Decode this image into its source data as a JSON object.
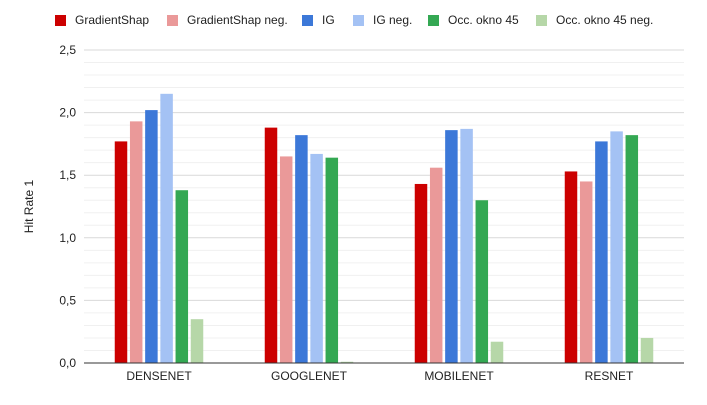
{
  "chart_data": {
    "type": "bar",
    "title": "",
    "xlabel": "",
    "ylabel": "Hit Rate 1",
    "categories": [
      "DENSENET",
      "GOOGLENET",
      "MOBILENET",
      "RESNET"
    ],
    "ylim": [
      0,
      2.5
    ],
    "yticks": [
      "0,0",
      "0,5",
      "1,0",
      "1,5",
      "2,0",
      "2,5"
    ],
    "grid": true,
    "legend_position": "top",
    "series": [
      {
        "name": "GradientShap",
        "color": "#cc0000",
        "values": [
          1.77,
          1.88,
          1.43,
          1.53
        ]
      },
      {
        "name": "GradientShap neg.",
        "color": "#ea9999",
        "values": [
          1.93,
          1.65,
          1.56,
          1.45
        ]
      },
      {
        "name": "IG",
        "color": "#3c78d8",
        "values": [
          2.02,
          1.82,
          1.86,
          1.77
        ]
      },
      {
        "name": "IG neg.",
        "color": "#a4c2f4",
        "values": [
          2.15,
          1.67,
          1.87,
          1.85
        ]
      },
      {
        "name": "Occ. okno 45",
        "color": "#34a853",
        "values": [
          1.38,
          1.64,
          1.3,
          1.82
        ]
      },
      {
        "name": "Occ. okno 45 neg.",
        "color": "#b6d7a8",
        "values": [
          0.35,
          0.01,
          0.17,
          0.2
        ]
      }
    ]
  }
}
